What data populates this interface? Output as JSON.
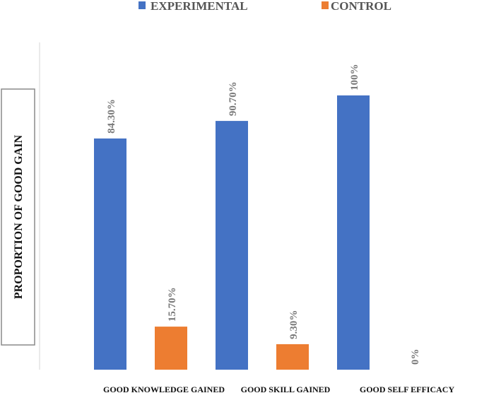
{
  "chart_data": {
    "type": "bar",
    "title": "",
    "ylabel": "PROPORTION OF GOOD GAIN",
    "xlabel": "",
    "categories": [
      "GOOD KNOWLEDGE GAINED",
      "GOOD SKILL GAINED",
      "GOOD SELF EFFICACY"
    ],
    "series": [
      {
        "name": "EXPERIMENTAL",
        "values": [
          84.3,
          90.7,
          100
        ],
        "labels": [
          "84.30%",
          "90.70%",
          "100%"
        ],
        "color": "#4472c4"
      },
      {
        "name": "CONTROL",
        "values": [
          15.7,
          9.3,
          0
        ],
        "labels": [
          "15.70%",
          "9.30%",
          "0%"
        ],
        "color": "#ed7d31"
      }
    ],
    "ylim": [
      0,
      100
    ],
    "grid": false,
    "legend_position": "top"
  }
}
